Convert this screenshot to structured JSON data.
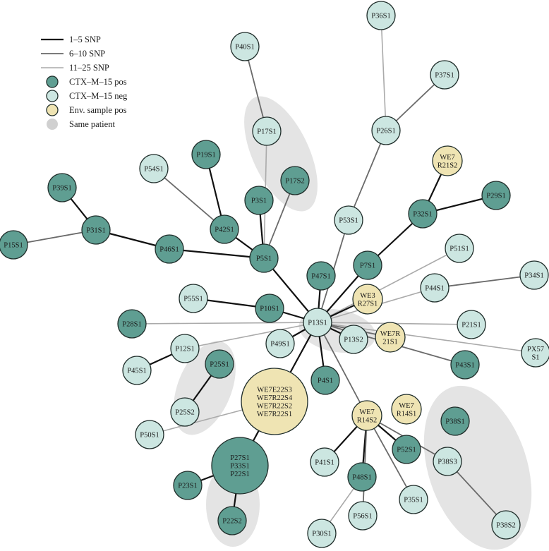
{
  "colors": {
    "pos": "#5f9e92",
    "neg": "#cce6e1",
    "env": "#efe4b3",
    "stroke": "#1f2d2a",
    "edge_1_5": "#111111",
    "edge_6_10": "#6a6a6a",
    "edge_11_25": "#aaaaaa",
    "patient_group": "#e4e4e4"
  },
  "legend": [
    {
      "kind": "line",
      "class": "1-5",
      "label": "1–5 SNP"
    },
    {
      "kind": "line",
      "class": "6-10",
      "label": "6–10 SNP"
    },
    {
      "kind": "line",
      "class": "11-25",
      "label": "11–25 SNP"
    },
    {
      "kind": "node",
      "type": "pos",
      "label": "CTX–M–15 pos"
    },
    {
      "kind": "node",
      "type": "neg",
      "label": "CTX–M–15 neg"
    },
    {
      "kind": "node",
      "type": "env",
      "label": "Env. sample pos"
    },
    {
      "kind": "patch",
      "type": "same-patient",
      "label": "Same patient"
    }
  ],
  "nodes": [
    {
      "id": "P36S1",
      "lines": [
        "P36S1"
      ],
      "type": "neg"
    },
    {
      "id": "P40S1",
      "lines": [
        "P40S1"
      ],
      "type": "neg"
    },
    {
      "id": "P37S1",
      "lines": [
        "P37S1"
      ],
      "type": "neg"
    },
    {
      "id": "P26S1",
      "lines": [
        "P26S1"
      ],
      "type": "neg"
    },
    {
      "id": "P17S1",
      "lines": [
        "P17S1"
      ],
      "type": "neg"
    },
    {
      "id": "P19S1",
      "lines": [
        "P19S1"
      ],
      "type": "pos"
    },
    {
      "id": "P54S1",
      "lines": [
        "P54S1"
      ],
      "type": "neg"
    },
    {
      "id": "P17S2",
      "lines": [
        "P17S2"
      ],
      "type": "pos"
    },
    {
      "id": "WE7R21S2",
      "lines": [
        "WE7",
        "R21S2"
      ],
      "type": "env"
    },
    {
      "id": "P39S1",
      "lines": [
        "P39S1"
      ],
      "type": "pos"
    },
    {
      "id": "P3S1",
      "lines": [
        "P3S1"
      ],
      "type": "pos"
    },
    {
      "id": "P29S1",
      "lines": [
        "P29S1"
      ],
      "type": "pos"
    },
    {
      "id": "P31S1",
      "lines": [
        "P31S1"
      ],
      "type": "pos"
    },
    {
      "id": "P42S1",
      "lines": [
        "P42S1"
      ],
      "type": "pos"
    },
    {
      "id": "P53S1",
      "lines": [
        "P53S1"
      ],
      "type": "neg"
    },
    {
      "id": "P32S1",
      "lines": [
        "P32S1"
      ],
      "type": "pos"
    },
    {
      "id": "P15S1",
      "lines": [
        "P15S1"
      ],
      "type": "pos"
    },
    {
      "id": "P46S1",
      "lines": [
        "P46S1"
      ],
      "type": "pos"
    },
    {
      "id": "P5S1",
      "lines": [
        "P5S1"
      ],
      "type": "pos"
    },
    {
      "id": "P51S1",
      "lines": [
        "P51S1"
      ],
      "type": "neg"
    },
    {
      "id": "P7S1",
      "lines": [
        "P7S1"
      ],
      "type": "pos"
    },
    {
      "id": "P47S1",
      "lines": [
        "P47S1"
      ],
      "type": "pos"
    },
    {
      "id": "P34S1",
      "lines": [
        "P34S1"
      ],
      "type": "neg"
    },
    {
      "id": "P44S1",
      "lines": [
        "P44S1"
      ],
      "type": "neg"
    },
    {
      "id": "WE3R27S1",
      "lines": [
        "WE3",
        "R27S1"
      ],
      "type": "env"
    },
    {
      "id": "P55S1",
      "lines": [
        "P55S1"
      ],
      "type": "neg"
    },
    {
      "id": "P10S1",
      "lines": [
        "P10S1"
      ],
      "type": "pos"
    },
    {
      "id": "P13S1",
      "lines": [
        "P13S1"
      ],
      "type": "neg"
    },
    {
      "id": "P28S1",
      "lines": [
        "P28S1"
      ],
      "type": "pos"
    },
    {
      "id": "P21S1",
      "lines": [
        "P21S1"
      ],
      "type": "neg"
    },
    {
      "id": "WE7R21S1",
      "lines": [
        "WE7R",
        "21S1"
      ],
      "type": "env"
    },
    {
      "id": "P13S2",
      "lines": [
        "P13S2"
      ],
      "type": "neg"
    },
    {
      "id": "P12S1",
      "lines": [
        "P12S1"
      ],
      "type": "neg"
    },
    {
      "id": "P49S1",
      "lines": [
        "P49S1"
      ],
      "type": "neg"
    },
    {
      "id": "PX57S1",
      "lines": [
        "PX57",
        "S1"
      ],
      "type": "neg"
    },
    {
      "id": "P43S1",
      "lines": [
        "P43S1"
      ],
      "type": "pos"
    },
    {
      "id": "P25S1",
      "lines": [
        "P25S1"
      ],
      "type": "pos"
    },
    {
      "id": "P45S1",
      "lines": [
        "P45S1"
      ],
      "type": "neg"
    },
    {
      "id": "P4S1",
      "lines": [
        "P4S1"
      ],
      "type": "pos"
    },
    {
      "id": "WEBIG",
      "lines": [
        "WE7E22S3",
        "WE7R22S4",
        "WE7R22S2",
        "WE7R22S1"
      ],
      "type": "env"
    },
    {
      "id": "P25S2",
      "lines": [
        "P25S2"
      ],
      "type": "neg"
    },
    {
      "id": "WE7R14S2",
      "lines": [
        "WE7",
        "R14S2"
      ],
      "type": "env"
    },
    {
      "id": "WE7R14S1",
      "lines": [
        "WE7",
        "R14S1"
      ],
      "type": "env"
    },
    {
      "id": "P38S1",
      "lines": [
        "P38S1"
      ],
      "type": "pos"
    },
    {
      "id": "P50S1",
      "lines": [
        "P50S1"
      ],
      "type": "neg"
    },
    {
      "id": "P52S1",
      "lines": [
        "P52S1"
      ],
      "type": "pos"
    },
    {
      "id": "PBIG",
      "lines": [
        "P27S1",
        "P33S1",
        "P22S1"
      ],
      "type": "pos"
    },
    {
      "id": "P38S3",
      "lines": [
        "P38S3"
      ],
      "type": "neg"
    },
    {
      "id": "P41S1",
      "lines": [
        "P41S1"
      ],
      "type": "neg"
    },
    {
      "id": "P48S1",
      "lines": [
        "P48S1"
      ],
      "type": "pos"
    },
    {
      "id": "P23S1",
      "lines": [
        "P23S1"
      ],
      "type": "pos"
    },
    {
      "id": "P35S1",
      "lines": [
        "P35S1"
      ],
      "type": "neg"
    },
    {
      "id": "P22S2",
      "lines": [
        "P22S2"
      ],
      "type": "pos"
    },
    {
      "id": "P56S1",
      "lines": [
        "P56S1"
      ],
      "type": "neg"
    },
    {
      "id": "P38S2",
      "lines": [
        "P38S2"
      ],
      "type": "neg"
    },
    {
      "id": "P30S1",
      "lines": [
        "P30S1"
      ],
      "type": "neg"
    }
  ],
  "edges": [
    [
      "P36S1",
      "P26S1",
      "11-25"
    ],
    [
      "P37S1",
      "P26S1",
      "6-10"
    ],
    [
      "P26S1",
      "P53S1",
      "6-10"
    ],
    [
      "P53S1",
      "P13S1",
      "6-10"
    ],
    [
      "P40S1",
      "P17S1",
      "6-10"
    ],
    [
      "P17S1",
      "P5S1",
      "11-25"
    ],
    [
      "P17S2",
      "P5S1",
      "6-10"
    ],
    [
      "P19S1",
      "P42S1",
      "1-5"
    ],
    [
      "P54S1",
      "P42S1",
      "6-10"
    ],
    [
      "P42S1",
      "P5S1",
      "1-5"
    ],
    [
      "P3S1",
      "P5S1",
      "1-5"
    ],
    [
      "P39S1",
      "P31S1",
      "1-5"
    ],
    [
      "P15S1",
      "P31S1",
      "6-10"
    ],
    [
      "P31S1",
      "P46S1",
      "1-5"
    ],
    [
      "P46S1",
      "P5S1",
      "1-5"
    ],
    [
      "P5S1",
      "P13S1",
      "1-5"
    ],
    [
      "WE7R21S2",
      "P32S1",
      "1-5"
    ],
    [
      "P29S1",
      "P32S1",
      "1-5"
    ],
    [
      "P32S1",
      "P7S1",
      "1-5"
    ],
    [
      "P7S1",
      "P13S1",
      "1-5"
    ],
    [
      "P51S1",
      "P13S1",
      "11-25"
    ],
    [
      "P34S1",
      "P44S1",
      "6-10"
    ],
    [
      "P44S1",
      "P13S1",
      "11-25"
    ],
    [
      "WE3R27S1",
      "P13S1",
      "1-5"
    ],
    [
      "P47S1",
      "P13S1",
      "1-5"
    ],
    [
      "P55S1",
      "P10S1",
      "1-5"
    ],
    [
      "P10S1",
      "P13S1",
      "1-5"
    ],
    [
      "P28S1",
      "P13S1",
      "11-25"
    ],
    [
      "P21S1",
      "P13S1",
      "11-25"
    ],
    [
      "WE7R21S1",
      "P13S1",
      "6-10"
    ],
    [
      "P13S2",
      "P13S1",
      "1-5"
    ],
    [
      "PX57S1",
      "P13S1",
      "11-25"
    ],
    [
      "P43S1",
      "P13S1",
      "6-10"
    ],
    [
      "P12S1",
      "P13S1",
      "11-25"
    ],
    [
      "P45S1",
      "P12S1",
      "1-5"
    ],
    [
      "P49S1",
      "P13S1",
      "1-5"
    ],
    [
      "P4S1",
      "P13S1",
      "1-5"
    ],
    [
      "WEBIG",
      "P13S1",
      "1-5"
    ],
    [
      "WE7R14S2",
      "P13S1",
      "6-10"
    ],
    [
      "P25S1",
      "P25S2",
      "1-5"
    ],
    [
      "P50S1",
      "WEBIG",
      "11-25"
    ],
    [
      "PBIG",
      "WEBIG",
      "1-5"
    ],
    [
      "P23S1",
      "PBIG",
      "1-5"
    ],
    [
      "P22S2",
      "PBIG",
      "1-5"
    ],
    [
      "P41S1",
      "WE7R14S2",
      "1-5"
    ],
    [
      "P48S1",
      "WE7R14S2",
      "1-5"
    ],
    [
      "P56S1",
      "WE7R14S2",
      "6-10"
    ],
    [
      "P35S1",
      "WE7R14S2",
      "6-10"
    ],
    [
      "P52S1",
      "WE7R14S2",
      "1-5"
    ],
    [
      "P38S3",
      "WE7R14S2",
      "6-10"
    ],
    [
      "P30S1",
      "P48S1",
      "11-25"
    ],
    [
      "P38S3",
      "P38S2",
      "6-10"
    ]
  ]
}
